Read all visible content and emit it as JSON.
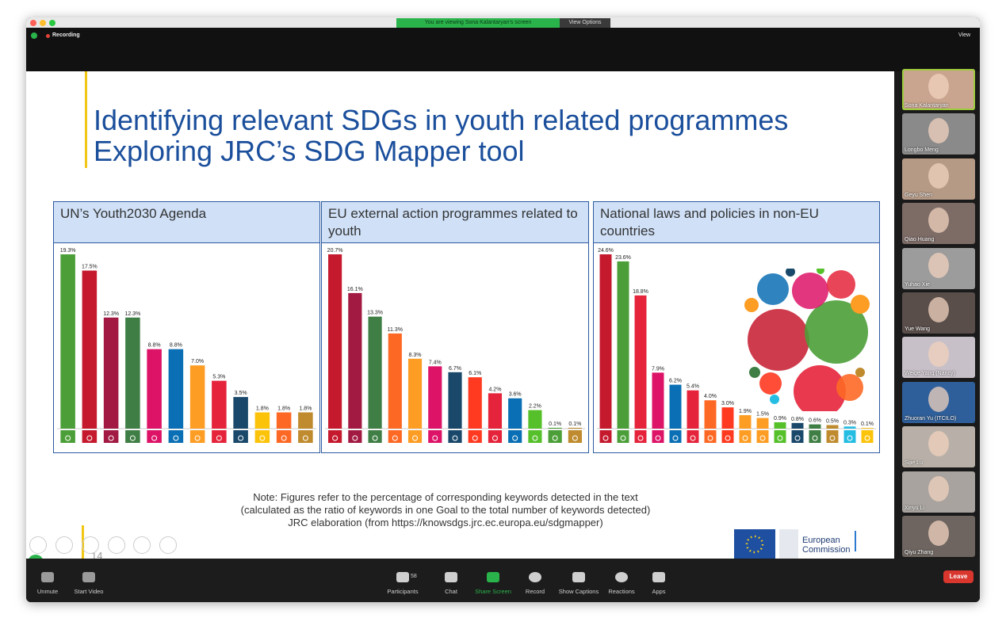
{
  "window": {
    "banner": "You are viewing Sona Kalantaryan's screen",
    "view_options": "View Options",
    "recording": "Recording",
    "view": "View"
  },
  "slide": {
    "title_lines": [
      "Identifying relevant SDGs in youth related programmes",
      "Exploring JRC’s SDG Mapper tool"
    ],
    "note_lines": [
      "Note: Figures refer to the percentage of corresponding keywords detected in the text",
      "(calculated as the ratio of keywords in one Goal to the total number of keywords detected)",
      "JRC elaboration (from https://knowsdgs.jrc.ec.europa.eu/sdgmapper)"
    ],
    "page_number": "14",
    "logo_text": [
      "European",
      "Commission"
    ]
  },
  "chart_data": [
    {
      "type": "bar",
      "title": "UN’s Youth2030 Agenda",
      "values": [
        19.3,
        17.5,
        12.3,
        12.3,
        8.8,
        8.8,
        7,
        5.3,
        3.5,
        1.8,
        1.8,
        1.8
      ],
      "value_labels": [
        "19.3%",
        "17.5%",
        "12.3%",
        "12.3%",
        "8.8%",
        "8.8%",
        "7.0%",
        "5.3%",
        "3.5%",
        "1.8%",
        "1.8%",
        "1.8%"
      ],
      "colors": [
        "#4c9f38",
        "#c5192d",
        "#a21942",
        "#3f7e44",
        "#dd1367",
        "#0a6fb4",
        "#fd9d24",
        "#e5243b",
        "#19486a",
        "#fcc30b",
        "#fd6925",
        "#bf8b2e"
      ]
    },
    {
      "type": "bar",
      "title": "EU external action programmes related to youth",
      "values": [
        20.7,
        16.1,
        13.3,
        11.3,
        8.3,
        7.4,
        6.7,
        6.1,
        4.2,
        3.6,
        2.2,
        0.1,
        0.1
      ],
      "value_labels": [
        "20.7%",
        "16.1%",
        "13.3%",
        "11.3%",
        "8.3%",
        "7.4%",
        "6.7%",
        "6.1%",
        "4.2%",
        "3.6%",
        "2.2%",
        "0.1%",
        "0.1%"
      ],
      "colors": [
        "#c5192d",
        "#a21942",
        "#3f7e44",
        "#fd6925",
        "#fd9d24",
        "#dd1367",
        "#19486a",
        "#ff3a21",
        "#e5243b",
        "#0a6fb4",
        "#56c02b",
        "#4c9f38",
        "#bf8b2e"
      ]
    },
    {
      "type": "bar",
      "title": "National laws and policies in non-EU countries",
      "values": [
        24.6,
        23.6,
        18.8,
        7.9,
        6.2,
        5.4,
        4,
        3,
        1.9,
        1.5,
        0.9,
        0.8,
        0.6,
        0.5,
        0.3,
        0.1
      ],
      "value_labels": [
        "24.6%",
        "23.6%",
        "18.8%",
        "7.9%",
        "6.2%",
        "5.4%",
        "4.0%",
        "3.0%",
        "1.9%",
        "1.5%",
        "0.9%",
        "0.8%",
        "0.6%",
        "0.5%",
        "0.3%",
        "0.1%"
      ],
      "colors": [
        "#c5192d",
        "#4c9f38",
        "#e5243b",
        "#dd1367",
        "#0a6fb4",
        "#e5243b",
        "#fd6925",
        "#ff3a21",
        "#fd9d24",
        "#fd9d24",
        "#56c02b",
        "#19486a",
        "#3f7e44",
        "#bf8b2e",
        "#26bde2",
        "#fcc30b"
      ]
    }
  ],
  "participants": [
    "Sona Kalantaryan",
    "Longbo Meng",
    "Geyu Shen",
    "Qiao Huang",
    "Yuhao Xie",
    "Yue Wang",
    "Weige Yang (Nancy)",
    "Zhuoran Yu (ITCILO)",
    "Sijie Lu",
    "Xinyu Li",
    "Qiyu Zhang"
  ],
  "toolbar": {
    "unmute": "Unmute",
    "start_video": "Start Video",
    "participants": "Participants",
    "participant_count": 58,
    "chat": "Chat",
    "share_screen": "Share Screen",
    "record": "Record",
    "show_captions": "Show Captions",
    "reactions": "Reactions",
    "apps": "Apps",
    "leave": "Leave"
  }
}
